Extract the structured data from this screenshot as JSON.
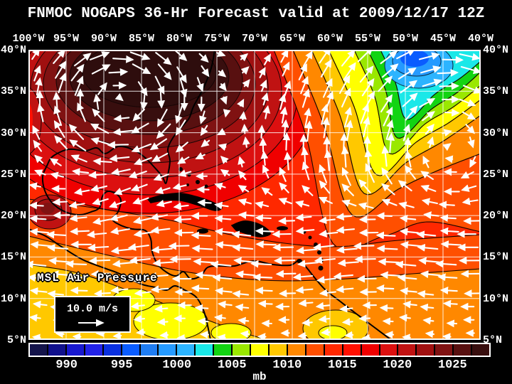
{
  "title": "FNMOC NOGAPS 36-Hr Forecast valid at 2009/12/17 12Z",
  "map": {
    "lon_labels": [
      "100°W",
      "95°W",
      "90°W",
      "85°W",
      "80°W",
      "75°W",
      "70°W",
      "65°W",
      "60°W",
      "55°W",
      "50°W",
      "45°W",
      "40°W"
    ],
    "lat_labels": [
      "40°N",
      "35°N",
      "30°N",
      "25°N",
      "20°N",
      "15°N",
      "10°N",
      "5°N"
    ],
    "overlay": {
      "field_label": "MSL Air Pressure",
      "wind_scale_label": "10.0 m/s"
    }
  },
  "colorbar": {
    "unit": "mb",
    "tick_labels": [
      "990",
      "995",
      "1000",
      "1005",
      "1010",
      "1015",
      "1020",
      "1025"
    ],
    "tick_after_cell": [
      2,
      5,
      8,
      11,
      14,
      17,
      20,
      23
    ],
    "cell_colors": [
      "#14144b",
      "#10108c",
      "#1818cf",
      "#2222e8",
      "#0a30e0",
      "#0a5cff",
      "#1f7df2",
      "#259aff",
      "#2cb4ff",
      "#1ae8e8",
      "#12d412",
      "#9ae800",
      "#ffff00",
      "#ffc800",
      "#ff8800",
      "#ff4f00",
      "#ff2800",
      "#ff0f00",
      "#f00000",
      "#dc1010",
      "#c01212",
      "#a01010",
      "#801212",
      "#581010",
      "#380e0e"
    ]
  },
  "colors": {
    "background": "#000000",
    "text": "#ffffff",
    "grid": "#ffffff",
    "coast": "#000000",
    "arrow": "#ffffff",
    "high_core": "#2e0d0d"
  }
}
